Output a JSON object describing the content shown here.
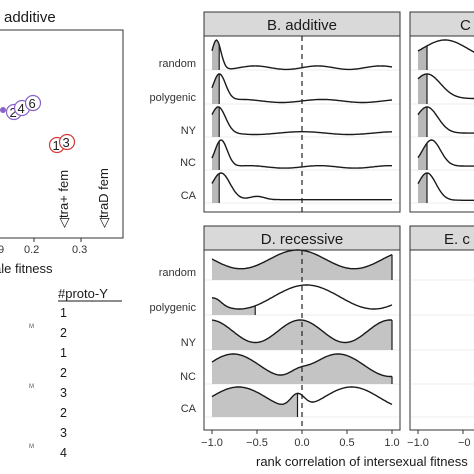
{
  "chart_data": [
    {
      "panel": "A",
      "type": "scatter",
      "title": "additive",
      "xlabel": "ale fitness",
      "x_ticks": [
        "0.2",
        "0.3"
      ],
      "points": [
        {
          "label": "1",
          "x": 0.25,
          "y": 0.3,
          "color": "#d73a3a"
        },
        {
          "label": "3",
          "x": 0.268,
          "y": 0.31,
          "color": "#d73a3a"
        },
        {
          "label": "2",
          "x": 0.15,
          "y": 0.48,
          "color": "#8a63c9"
        },
        {
          "label": "4",
          "x": 0.175,
          "y": 0.5,
          "color": "#8a63c9"
        },
        {
          "label": "6",
          "x": 0.2,
          "y": 0.54,
          "color": "#8a63c9"
        }
      ],
      "annotations": [
        "◁tra+ fem",
        "◁traD fem"
      ],
      "partial_label": "9"
    },
    {
      "panel": "B",
      "type": "ridge-density",
      "title": "B. additive",
      "rows": [
        "random",
        "polygenic",
        "NY",
        "NC",
        "CA"
      ],
      "xlim": [
        -1.05,
        1.05
      ],
      "x_ticks": [
        -1.0,
        -0.5,
        0.0,
        0.5,
        1.0
      ],
      "xlabel": "rank correlation of intersexual fitness"
    },
    {
      "panel": "C",
      "type": "ridge-density",
      "title": "C"
    },
    {
      "panel": "D",
      "type": "ridge-density",
      "title": "D. recessive",
      "rows": [
        "random",
        "polygenic",
        "NY",
        "NC",
        "CA"
      ],
      "xlim": [
        -1.05,
        1.05
      ],
      "x_ticks": [
        "−1.0",
        "−0.5",
        "0.0",
        "0.5",
        "1.0"
      ]
    },
    {
      "panel": "E",
      "type": "ridge-density",
      "title": "E. c",
      "x_ticks": [
        "−1.0",
        "−0"
      ]
    }
  ],
  "proto_table": {
    "header": "#proto-Y",
    "values": [
      "1",
      "2",
      "1",
      "2",
      "3",
      "2",
      "3",
      "4"
    ],
    "fragments": [
      "M",
      "M",
      "M"
    ]
  }
}
